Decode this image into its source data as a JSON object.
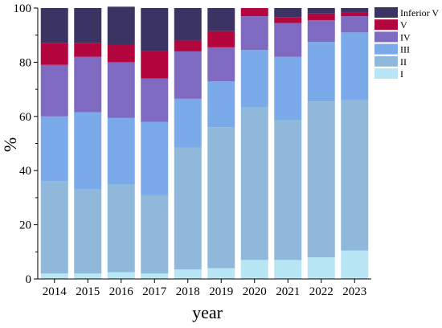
{
  "chart_data": {
    "type": "bar",
    "stacked": true,
    "xlabel": "year",
    "ylabel": "%",
    "ylim": [
      0,
      100
    ],
    "yticks": [
      0,
      20,
      40,
      60,
      80,
      100
    ],
    "grid": false,
    "legend_position": "right",
    "categories": [
      "2014",
      "2015",
      "2016",
      "2017",
      "2018",
      "2019",
      "2020",
      "2021",
      "2022",
      "2023"
    ],
    "series": [
      {
        "name": "I",
        "color": "#b8e6f5",
        "values": [
          2,
          2,
          2.5,
          2,
          3.5,
          4,
          7,
          7,
          8,
          10.5
        ]
      },
      {
        "name": "II",
        "color": "#8fb8da",
        "values": [
          34,
          31,
          32.5,
          29,
          45,
          52,
          56.5,
          51.5,
          57.5,
          55.5
        ]
      },
      {
        "name": "III",
        "color": "#7aaaea",
        "values": [
          24,
          28.5,
          24.5,
          27,
          18,
          17,
          21,
          23.5,
          22,
          25
        ]
      },
      {
        "name": "IV",
        "color": "#7f6ac2",
        "values": [
          19,
          20.5,
          20.5,
          16,
          17.5,
          12.5,
          12.5,
          12.5,
          8,
          6
        ]
      },
      {
        "name": "V",
        "color": "#b3063f",
        "values": [
          8,
          5,
          6.5,
          10,
          4,
          6,
          3,
          2,
          2.5,
          1.5
        ]
      },
      {
        "name": "Inferior V",
        "color": "#3b3462",
        "values": [
          13,
          13,
          14,
          16,
          12,
          8.5,
          0,
          3.5,
          2,
          1.5
        ]
      }
    ]
  }
}
